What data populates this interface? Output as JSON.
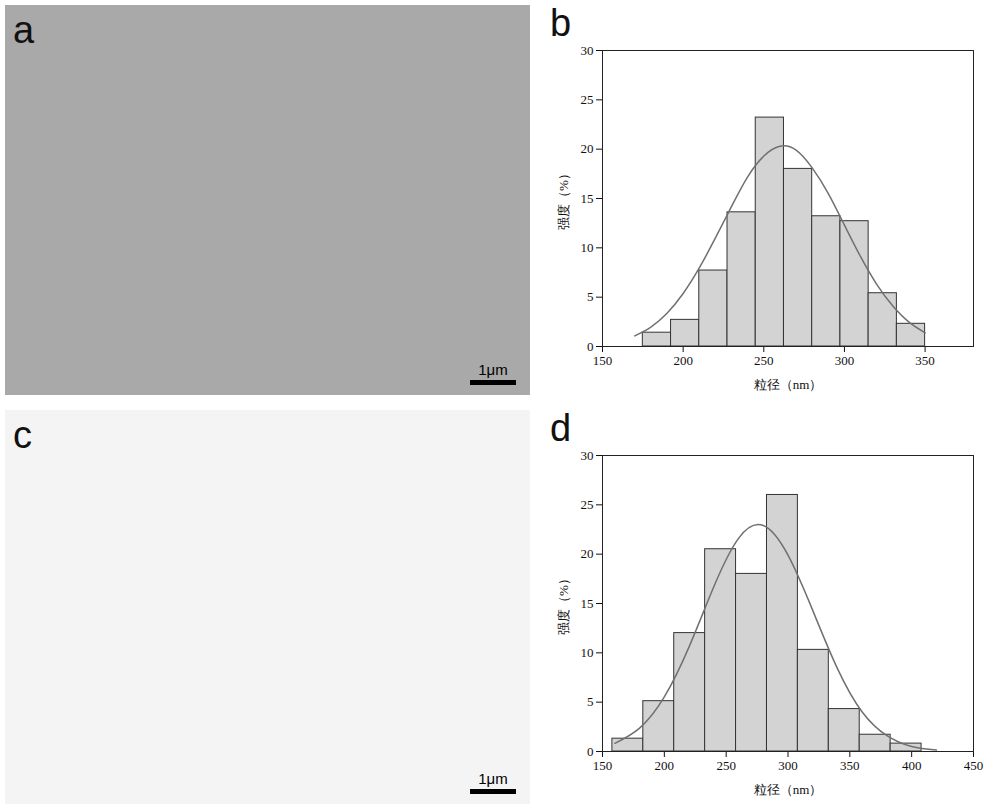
{
  "chart_data": [
    {
      "type": "image",
      "panel": "a",
      "scale_bar": "1μm",
      "color": "#a9a9a9"
    },
    {
      "type": "histogram",
      "panel": "b",
      "x_label": "粒径（nm）",
      "y_label": "强度（%）",
      "bins": [
        175,
        192.5,
        210,
        227.5,
        245,
        262.5,
        280,
        297.5,
        315,
        332.5,
        350
      ],
      "values": [
        1.4,
        2.7,
        7.7,
        13.6,
        23.2,
        18.0,
        13.2,
        12.7,
        5.4,
        2.3
      ],
      "color": "#d3d3d3",
      "fit": {
        "type": "line",
        "color": "#707070",
        "x": [
          170,
          180,
          190,
          200,
          210,
          220,
          230,
          240,
          250,
          260,
          270,
          280,
          290,
          300,
          310,
          320,
          330,
          340,
          350
        ],
        "values": [
          1.08,
          1.97,
          3.37,
          5.37,
          7.96,
          11.0,
          14.2,
          17.2,
          19.3,
          20.3,
          19.9,
          18.1,
          15.5,
          12.3,
          9.1,
          6.3,
          4.1,
          2.47,
          1.39
        ]
      },
      "xlim": [
        150,
        380
      ],
      "xticks": [
        150,
        200,
        250,
        300,
        350
      ],
      "ylim": [
        0,
        30
      ],
      "yticks": [
        0,
        5,
        10,
        15,
        20,
        25,
        30
      ]
    },
    {
      "type": "image",
      "panel": "c",
      "scale_bar": "1μm",
      "color": "#f4f4f4"
    },
    {
      "type": "histogram",
      "panel": "d",
      "x_label": "粒径（nm）",
      "y_label": "强度（%）",
      "bins": [
        158,
        183,
        208,
        233,
        258,
        283,
        308,
        333,
        358,
        383,
        408
      ],
      "values": [
        1.3,
        5.1,
        12.0,
        20.5,
        18.0,
        26.0,
        10.3,
        4.3,
        1.7,
        0.8
      ],
      "color": "#d3d3d3",
      "fit": {
        "type": "line",
        "color": "#707070",
        "x": [
          160,
          180,
          200,
          220,
          240,
          260,
          280,
          300,
          320,
          340,
          360,
          380,
          400,
          420
        ],
        "values": [
          0.83,
          2.37,
          5.53,
          10.6,
          16.7,
          21.6,
          22.9,
          19.9,
          14.3,
          8.4,
          4.0,
          1.6,
          0.5,
          0.14
        ]
      },
      "xlim": [
        150,
        450
      ],
      "xticks": [
        150,
        200,
        250,
        300,
        350,
        400,
        450
      ],
      "ylim": [
        0,
        30
      ],
      "yticks": [
        0,
        5,
        10,
        15,
        20,
        25,
        30
      ]
    }
  ]
}
